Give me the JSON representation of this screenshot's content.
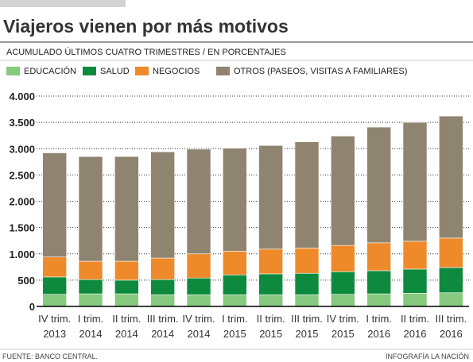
{
  "chart_data": {
    "type": "stacked_bar",
    "title": "Viajeros vienen por más motivos",
    "subtitle": "ACUMULADO ÚLTIMOS CUATRO TRIMESTRES  /  EN PORCENTAJES",
    "source": "FUENTE: BANCO CENTRAL.",
    "credit": "INFOGRAFÍA LA NACIÓN",
    "categories": [
      "IV trim. 2013",
      "I trim. 2014",
      "II trim. 2014",
      "III trim. 2014",
      "IV trim. 2014",
      "I trim. 2015",
      "II trim. 2015",
      "III trim. 2015",
      "IV trim. 2015",
      "I trim. 2016",
      "II trim. 2016",
      "III trim. 2016"
    ],
    "series": [
      {
        "name": "EDUCACIÓN",
        "color": "#86c97f",
        "values": [
          230,
          240,
          240,
          220,
          220,
          220,
          220,
          220,
          230,
          240,
          250,
          260
        ]
      },
      {
        "name": "SALUD",
        "color": "#0e8a3e",
        "values": [
          330,
          270,
          260,
          290,
          320,
          380,
          400,
          410,
          430,
          440,
          460,
          480
        ]
      },
      {
        "name": "NEGOCIOS",
        "color": "#ef8a2a",
        "values": [
          380,
          350,
          360,
          410,
          460,
          450,
          470,
          480,
          500,
          530,
          530,
          560
        ]
      },
      {
        "name": "OTROS (PASEOS, VISITAS A FAMILIARES)",
        "color": "#8e8470",
        "values": [
          1980,
          1990,
          1990,
          2020,
          1990,
          1960,
          1970,
          2020,
          2080,
          2200,
          2260,
          2320
        ]
      }
    ],
    "ylim": [
      0,
      4000
    ],
    "yticks": [
      0,
      {
        "value": 500,
        "label": "500"
      },
      {
        "value": 1000,
        "label": "1.000"
      },
      {
        "value": 1500,
        "label": "1.500"
      },
      {
        "value": 2000,
        "label": "2.000"
      },
      {
        "value": 2500,
        "label": "2.500"
      },
      {
        "value": 3000,
        "label": "3.000"
      },
      {
        "value": 3500,
        "label": "3.500"
      },
      {
        "value": 4000,
        "label": "4.000"
      }
    ],
    "grid": true
  }
}
